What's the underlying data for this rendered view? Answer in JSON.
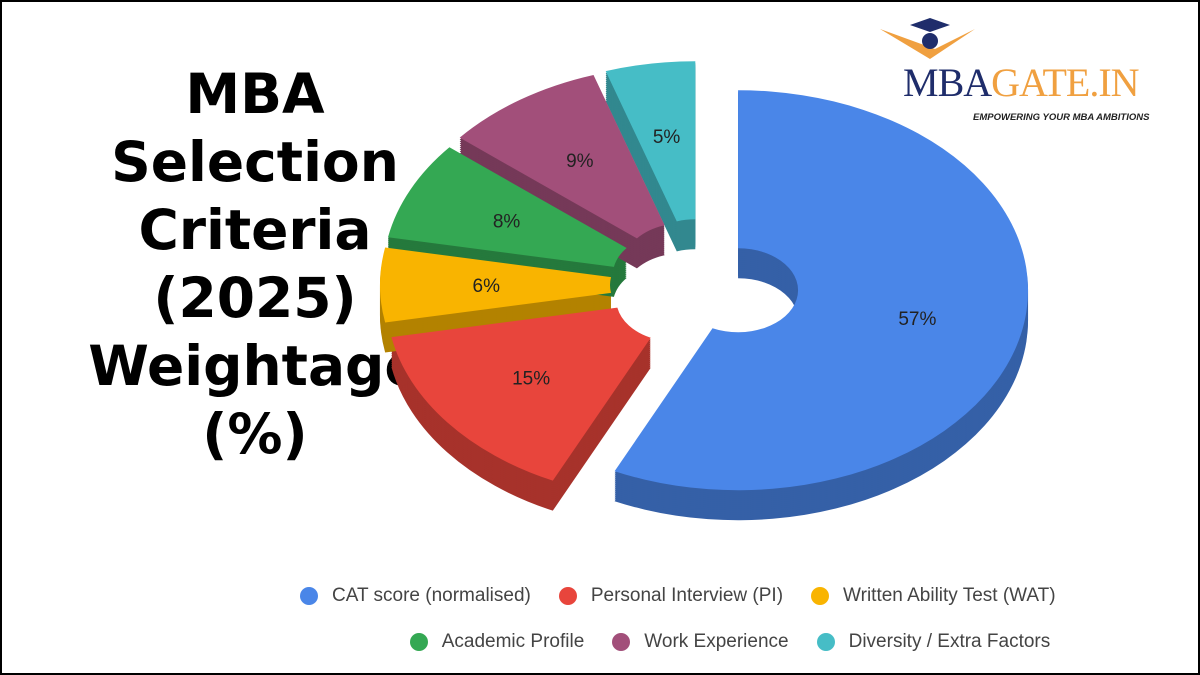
{
  "title_lines": [
    "MBA",
    "Selection",
    "Criteria",
    "(2025)",
    "Weightage",
    "(%)"
  ],
  "logo": {
    "text_dark": "MBA",
    "text_light": "GATE.IN",
    "tagline": "EMPOWERING YOUR MBA AMBITIONS",
    "icon": "graduation-cap-icon"
  },
  "chart_data": {
    "type": "pie",
    "style": "3d exploded donut",
    "title": "",
    "legend_position": "bottom",
    "categories": [
      "CAT score (normalised)",
      "Personal Interview (PI)",
      "Written Ability Test (WAT)",
      "Academic Profile",
      "Work Experience",
      "Diversity / Extra Factors"
    ],
    "values": [
      57,
      15,
      6,
      8,
      9,
      5
    ],
    "labels": [
      "57%",
      "15%",
      "6%",
      "8%",
      "9%",
      "5%"
    ],
    "colors": [
      "#4a86e8",
      "#e8453c",
      "#f9b400",
      "#34a853",
      "#a24f7a",
      "#46bdc6"
    ]
  }
}
